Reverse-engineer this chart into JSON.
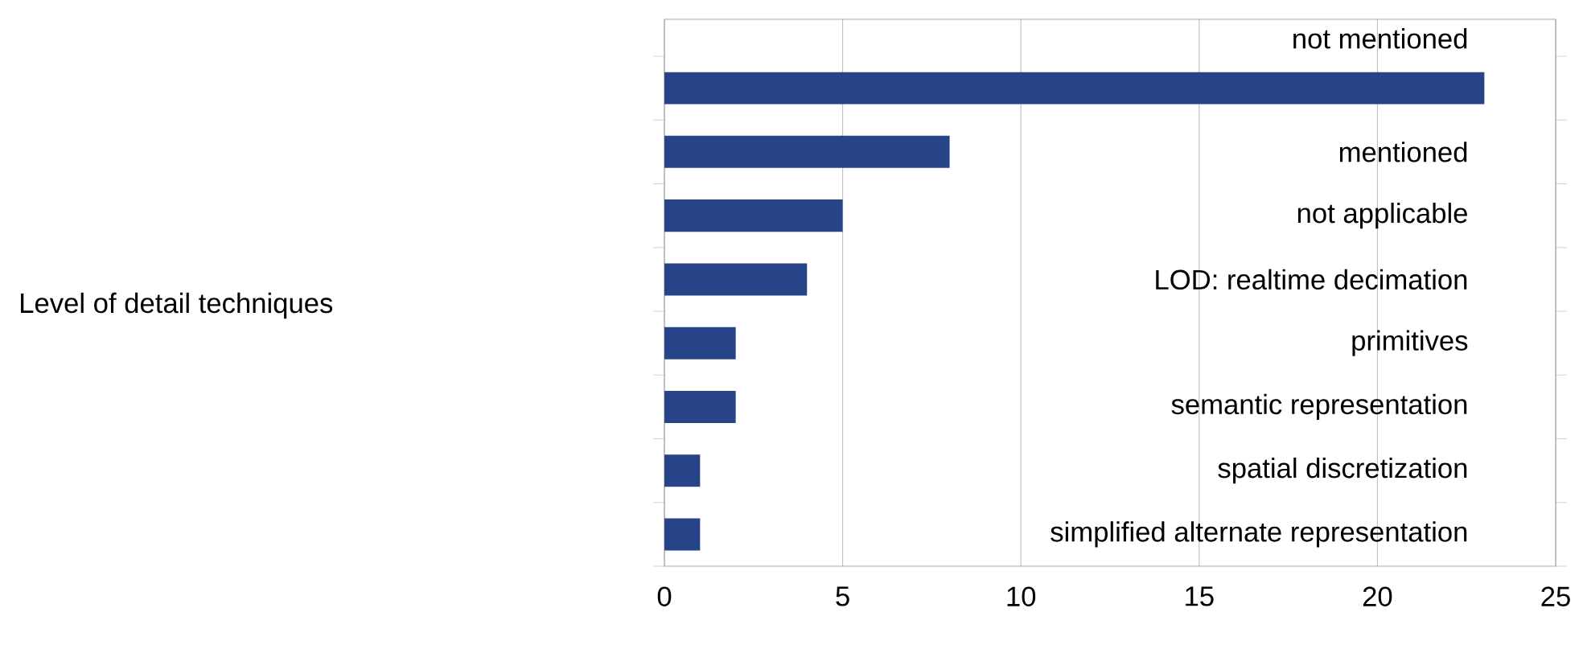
{
  "chart_data": {
    "type": "bar",
    "orientation": "horizontal",
    "annotations": [
      "Level of detail techniques"
    ],
    "categories": [
      "not mentioned",
      "mentioned",
      "not applicable",
      "LOD: realtime decimation",
      "primitives",
      "semantic representation",
      "spatial discretization",
      "simplified alternate representation"
    ],
    "values": [
      23,
      8,
      5,
      4,
      2,
      2,
      1,
      1
    ],
    "color": "#264487",
    "xlim": [
      0,
      25
    ],
    "xticks": [
      0,
      5,
      10,
      15,
      20,
      25
    ],
    "grid": "x"
  }
}
